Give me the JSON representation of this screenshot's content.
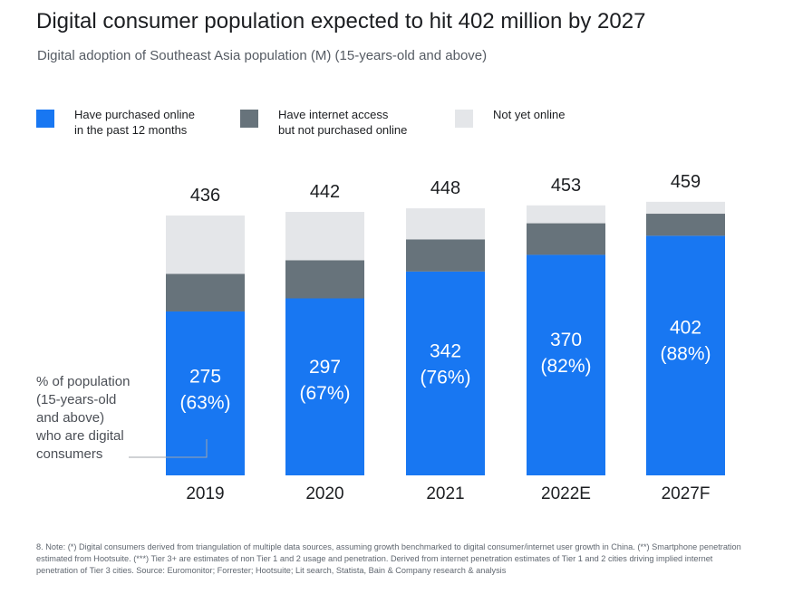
{
  "title": "Digital consumer population expected to hit 402 million by 2027",
  "subtitle": "Digital adoption of Southeast Asia population (M) (15-years-old and above)",
  "legend": [
    {
      "label": "Have purchased online\nin the past 12 months",
      "color": "#1877f2"
    },
    {
      "label": "Have internet access\nbut not purchased online",
      "color": "#67737b"
    },
    {
      "label": "Not yet online",
      "color": "#e4e6e9"
    }
  ],
  "annotation": "% of population\n(15-years-old\nand above)\nwho are digital\nconsumers",
  "footnote": "8. Note: (*) Digital consumers derived from triangulation of multiple data sources, assuming growth benchmarked to digital consumer/internet user growth in China. (**) Smartphone penetration estimated from Hootsuite. (***) Tier 3+ are estimates of non Tier 1 and 2 usage and penetration. Derived from internet penetration estimates of Tier 1 and 2 cities driving implied internet penetration of Tier 3 cities. Source: Euromonitor; Forrester; Hootsuite; Lit search, Statista, Bain & Company research & analysis",
  "chart_data": {
    "type": "bar",
    "stacked": true,
    "categories": [
      "2019",
      "2020",
      "2021",
      "2022E",
      "2027F"
    ],
    "totals": [
      436,
      442,
      448,
      453,
      459
    ],
    "series": [
      {
        "name": "Have purchased online in the past 12 months",
        "values": [
          275,
          297,
          342,
          370,
          402
        ],
        "color": "#1877f2"
      },
      {
        "name": "Have internet access but not purchased online",
        "values": [
          63,
          64,
          54,
          53,
          37
        ],
        "color": "#67737b"
      },
      {
        "name": "Not yet online",
        "values": [
          98,
          81,
          52,
          30,
          20
        ],
        "color": "#e4e6e9"
      }
    ],
    "percent_labels": [
      "(63%)",
      "(67%)",
      "(76%)",
      "(82%)",
      "(88%)"
    ],
    "legend_position": "top"
  }
}
